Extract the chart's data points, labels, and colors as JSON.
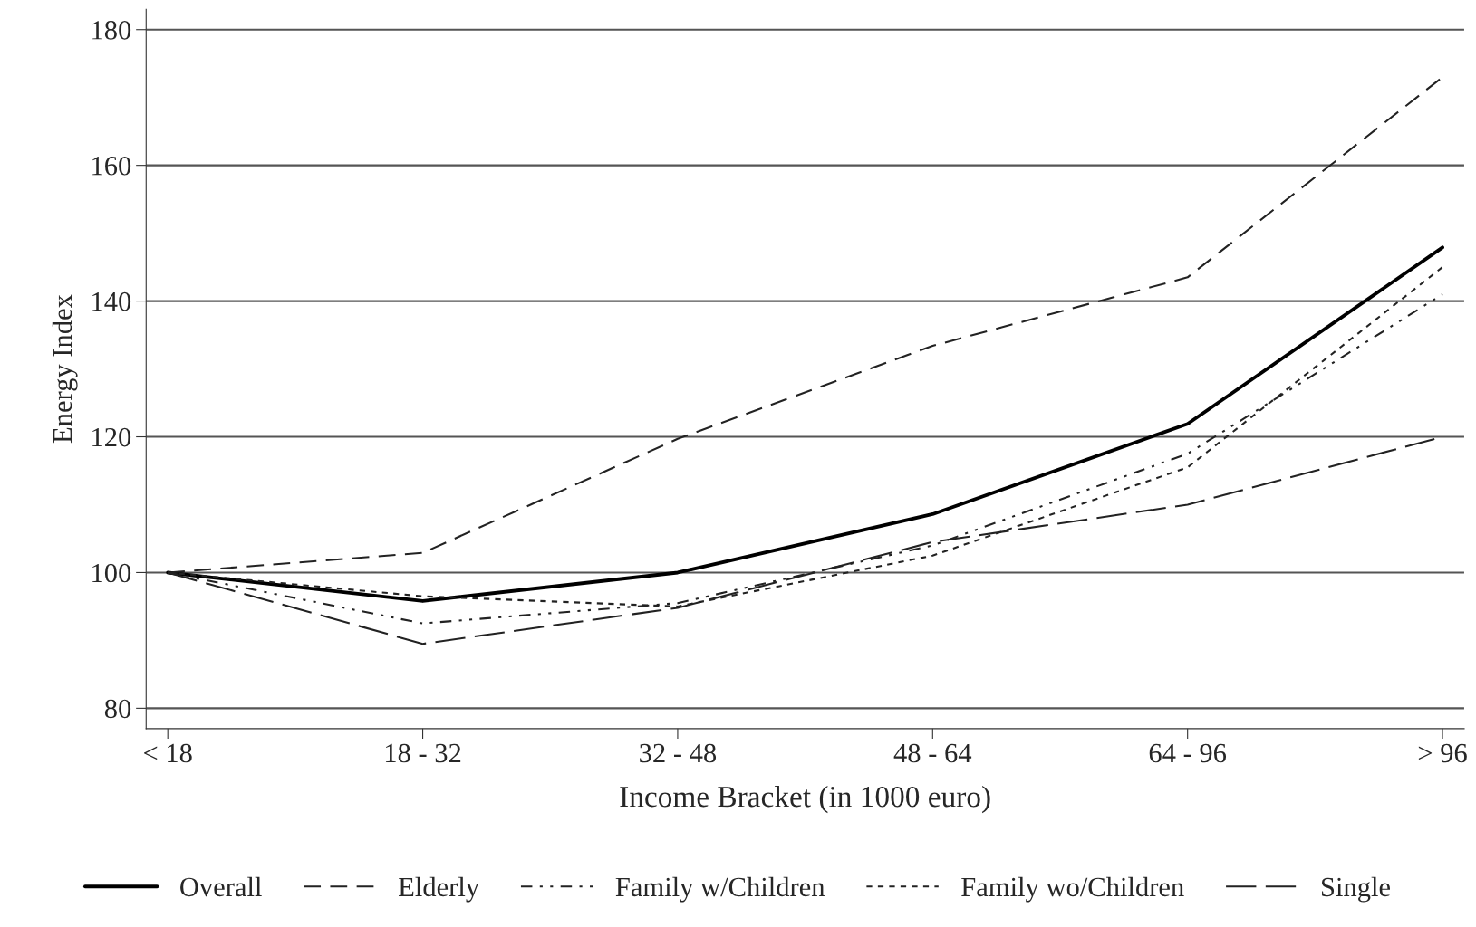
{
  "chart_data": {
    "type": "line",
    "xlabel": "Income Bracket (in 1000 euro)",
    "ylabel": "Energy Index",
    "categories": [
      "< 18",
      "18 - 32",
      "32 - 48",
      "48 - 64",
      "64 - 96",
      "> 96"
    ],
    "series": [
      {
        "name": "Overall",
        "color": "#000000",
        "line_style": "solid",
        "values": [
          100,
          95.8,
          100,
          108.6,
          121.9,
          147.9
        ]
      },
      {
        "name": "Elderly",
        "color": "#222222",
        "line_style": "dashed",
        "values": [
          100,
          102.9,
          119.7,
          133.4,
          143.5,
          173
        ]
      },
      {
        "name": "Family w/Children",
        "color": "#222222",
        "line_style": "dashdot",
        "values": [
          100,
          92.5,
          95.5,
          104,
          117.5,
          141
        ]
      },
      {
        "name": "Family wo/Children",
        "color": "#222222",
        "line_style": "dotted",
        "values": [
          100,
          96.5,
          95,
          102.5,
          115.5,
          145
        ]
      },
      {
        "name": "Single",
        "color": "#222222",
        "line_style": "longdash",
        "values": [
          100,
          89.5,
          94.8,
          104.5,
          110,
          120
        ]
      }
    ],
    "ylim": [
      77,
      183
    ],
    "yticks": [
      80,
      100,
      120,
      140,
      160,
      180
    ],
    "grid": "y",
    "legend": "bottom",
    "marker": "none"
  }
}
